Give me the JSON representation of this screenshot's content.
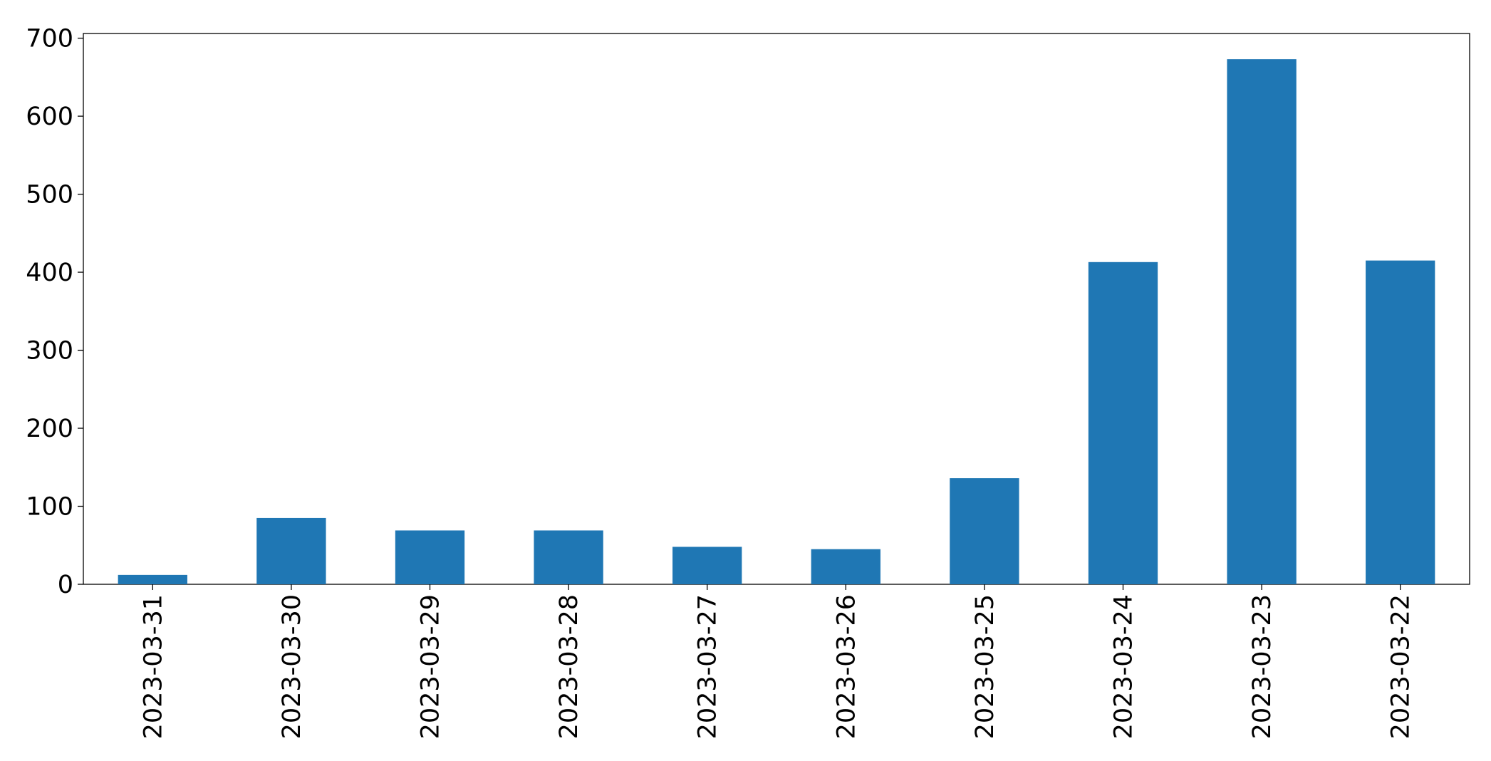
{
  "chart_data": {
    "type": "bar",
    "categories": [
      "2023-03-31",
      "2023-03-30",
      "2023-03-29",
      "2023-03-28",
      "2023-03-27",
      "2023-03-26",
      "2023-03-25",
      "2023-03-24",
      "2023-03-23",
      "2023-03-22"
    ],
    "values": [
      12,
      85,
      69,
      69,
      48,
      45,
      136,
      413,
      673,
      415
    ],
    "color": "#1f77b4",
    "ylim": [
      0,
      706
    ],
    "yticks": [
      0,
      100,
      200,
      300,
      400,
      500,
      600,
      700
    ],
    "grid": false
  }
}
